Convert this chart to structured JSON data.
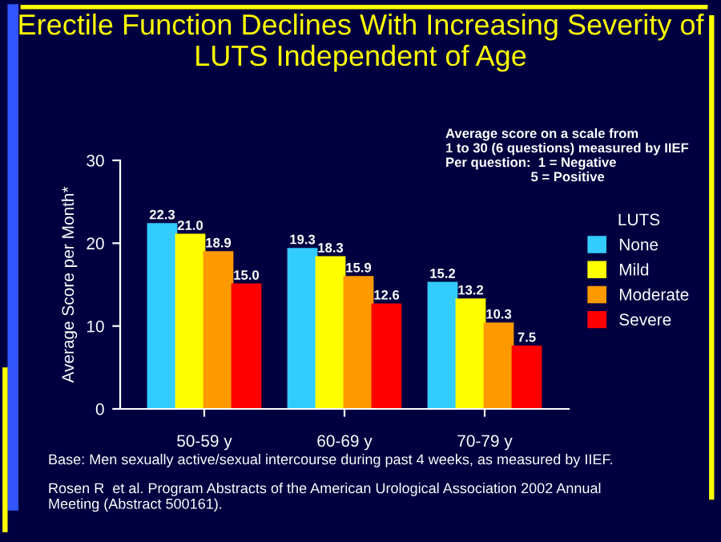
{
  "chart_data": {
    "type": "bar",
    "title": "Erectile Function Declines With Increasing Severity of LUTS Independent of Age",
    "ylabel": "Average Score per Month*",
    "legend_title": "LUTS",
    "categories": [
      "50-59 y",
      "60-69 y",
      "70-79 y"
    ],
    "series": [
      {
        "name": "None",
        "color": "#33ccff",
        "values": [
          22.3,
          19.3,
          15.2
        ],
        "value_labels": [
          "22.3",
          "19.3",
          "15.2"
        ]
      },
      {
        "name": "Mild",
        "color": "#ffff00",
        "values": [
          21.0,
          18.3,
          13.2
        ],
        "value_labels": [
          "21.0",
          "18.3",
          "13.2"
        ]
      },
      {
        "name": "Moderate",
        "color": "#ff9900",
        "values": [
          18.9,
          15.9,
          10.3
        ],
        "value_labels": [
          "18.9",
          "15.9",
          "10.3"
        ]
      },
      {
        "name": "Severe",
        "color": "#ff0000",
        "values": [
          15.0,
          12.6,
          7.5
        ],
        "value_labels": [
          "15.0",
          "12.6",
          "7.5"
        ]
      }
    ],
    "ylim": [
      0,
      30
    ],
    "yticks": [
      0,
      10,
      20,
      30
    ],
    "legend": "right",
    "annotations": [
      "Average score on a scale from\n1 to 30 (6 questions) measured by IIEF\nPer question:  1 = Negative\n                       5 = Positive",
      "Base: Men sexually active/sexual intercourse during past 4 weeks, as measured by IIEF.",
      "Rosen R  et al. Program Abstracts of the American Urological Association 2002 Annual\nMeeting (Abstract 500161)."
    ]
  }
}
